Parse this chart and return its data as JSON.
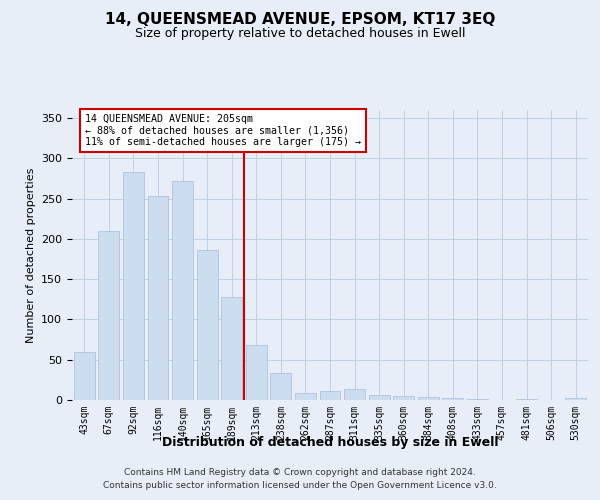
{
  "title": "14, QUEENSMEAD AVENUE, EPSOM, KT17 3EQ",
  "subtitle": "Size of property relative to detached houses in Ewell",
  "xlabel": "Distribution of detached houses by size in Ewell",
  "ylabel": "Number of detached properties",
  "footer_line1": "Contains HM Land Registry data © Crown copyright and database right 2024.",
  "footer_line2": "Contains public sector information licensed under the Open Government Licence v3.0.",
  "categories": [
    "43sqm",
    "67sqm",
    "92sqm",
    "116sqm",
    "140sqm",
    "165sqm",
    "189sqm",
    "213sqm",
    "238sqm",
    "262sqm",
    "287sqm",
    "311sqm",
    "335sqm",
    "360sqm",
    "384sqm",
    "408sqm",
    "433sqm",
    "457sqm",
    "481sqm",
    "506sqm",
    "530sqm"
  ],
  "values": [
    60,
    210,
    283,
    253,
    272,
    186,
    128,
    68,
    33,
    9,
    11,
    14,
    6,
    5,
    4,
    3,
    1,
    0,
    1,
    0,
    3
  ],
  "bar_color": "#ccddf0",
  "bar_edge_color": "#aabbd8",
  "grid_color": "#b8cce0",
  "background_color": "#e8eef8",
  "vline_color": "#cc0000",
  "annotation_title": "14 QUEENSMEAD AVENUE: 205sqm",
  "annotation_line1": "← 88% of detached houses are smaller (1,356)",
  "annotation_line2": "11% of semi-detached houses are larger (175) →",
  "annotation_box_color": "#ffffff",
  "annotation_box_edge": "#cc0000",
  "ylim": [
    0,
    360
  ],
  "yticks": [
    0,
    50,
    100,
    150,
    200,
    250,
    300,
    350
  ],
  "vline_pos": 6.5
}
